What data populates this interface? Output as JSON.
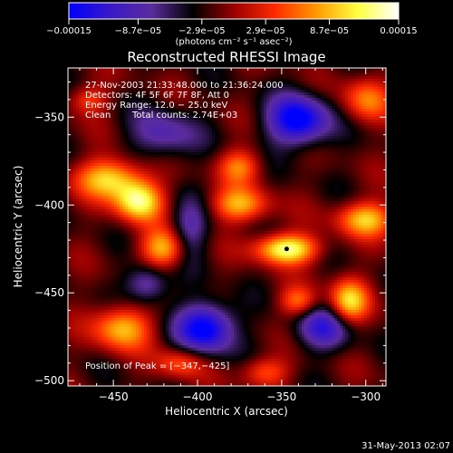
{
  "chart_data": {
    "type": "heatmap",
    "title": "Reconstructed RHESSI Image",
    "xlabel": "Heliocentric X (arcsec)",
    "ylabel": "Heliocentric Y (arcsec)",
    "xlim": [
      -477,
      -288
    ],
    "ylim": [
      -503,
      -322
    ],
    "x_ticks": [
      -450,
      -400,
      -350,
      -300
    ],
    "x_tick_labels": [
      "−450",
      "−400",
      "−350",
      "−300"
    ],
    "y_ticks": [
      -350,
      -400,
      -450,
      -500
    ],
    "y_tick_labels": [
      "−350",
      "−400",
      "−450",
      "−500"
    ],
    "colorbar": {
      "range": [
        -0.00015,
        0.00015
      ],
      "tick_values": [
        -0.00015,
        -8.7e-05,
        -2.9e-05,
        2.9e-05,
        8.7e-05,
        0.00015
      ],
      "tick_labels": [
        "−0.00015",
        "−8.7e−05",
        "−2.9e−05",
        "2.9e−05",
        "8.7e−05",
        "0.00015"
      ],
      "units_label": "(photons cm⁻² s⁻¹ asec⁻²)",
      "colormap": [
        "#0000ff",
        "#3a18c8",
        "#5b2c9e",
        "#000000",
        "#9a0000",
        "#ff2a00",
        "#ff9900",
        "#ffff40",
        "#ffffff"
      ]
    },
    "annotations": {
      "time_range": "27-Nov-2003 21:33:48.000 to 21:36:24.000",
      "detectors": "Detectors: 4F 5F 6F 7F 8F, Att 0",
      "energy": "Energy Range: 12.0 − 25.0 keV",
      "clean": "Clean",
      "counts": "Total counts: 2.74E+03",
      "peak": "Position of Peak = [−347,−425]"
    },
    "peak": [
      -347,
      -425
    ],
    "intensity_sources": [
      {
        "x": -340,
        "y": -352,
        "value": -0.00014,
        "sx": 13,
        "sy": 10
      },
      {
        "x": -395,
        "y": -470,
        "value": -0.00014,
        "sx": 12,
        "sy": 10
      },
      {
        "x": -325,
        "y": -470,
        "value": -9e-05,
        "sx": 12,
        "sy": 9
      },
      {
        "x": -430,
        "y": -445,
        "value": -8e-05,
        "sx": 9,
        "sy": 8
      },
      {
        "x": -420,
        "y": -360,
        "value": -7e-05,
        "sx": 14,
        "sy": 10
      },
      {
        "x": -405,
        "y": -415,
        "value": -7e-05,
        "sx": 8,
        "sy": 12
      },
      {
        "x": -452,
        "y": -385,
        "value": 0.00012,
        "sx": 14,
        "sy": 8
      },
      {
        "x": -435,
        "y": -398,
        "value": 0.00014,
        "sx": 10,
        "sy": 8
      },
      {
        "x": -420,
        "y": -425,
        "value": 0.00011,
        "sx": 10,
        "sy": 8
      },
      {
        "x": -375,
        "y": -400,
        "value": 0.0001,
        "sx": 12,
        "sy": 7
      },
      {
        "x": -375,
        "y": -378,
        "value": 8e-05,
        "sx": 9,
        "sy": 7
      },
      {
        "x": -347,
        "y": -425,
        "value": 0.00015,
        "sx": 13,
        "sy": 6
      },
      {
        "x": -300,
        "y": -408,
        "value": 0.00011,
        "sx": 12,
        "sy": 7
      },
      {
        "x": -310,
        "y": -455,
        "value": 0.00012,
        "sx": 8,
        "sy": 9
      },
      {
        "x": -340,
        "y": -455,
        "value": 8e-05,
        "sx": 8,
        "sy": 6
      },
      {
        "x": -445,
        "y": -470,
        "value": 0.00011,
        "sx": 12,
        "sy": 9
      },
      {
        "x": -410,
        "y": -490,
        "value": 7e-05,
        "sx": 10,
        "sy": 6
      },
      {
        "x": -360,
        "y": -495,
        "value": 7e-05,
        "sx": 10,
        "sy": 6
      },
      {
        "x": -465,
        "y": -340,
        "value": 6e-05,
        "sx": 8,
        "sy": 6
      },
      {
        "x": -300,
        "y": -340,
        "value": 8e-05,
        "sx": 10,
        "sy": 9
      }
    ]
  },
  "footer": {
    "timestamp": "31-May-2013 02:07"
  }
}
